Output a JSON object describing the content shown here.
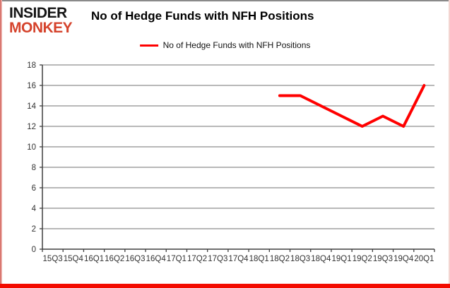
{
  "brand": {
    "line1": "INSIDER",
    "line2": "MONKEY"
  },
  "header": {
    "title": "No of Hedge Funds with NFH Positions"
  },
  "legend": {
    "label": "No of Hedge Funds with NFH Positions",
    "line_color": "#ff0000"
  },
  "chart_data": {
    "type": "line",
    "title": "No of Hedge Funds with NFH Positions",
    "categories": [
      "15Q3",
      "15Q4",
      "16Q1",
      "16Q2",
      "16Q3",
      "16Q4",
      "17Q1",
      "17Q2",
      "17Q3",
      "17Q4",
      "18Q1",
      "18Q2",
      "18Q3",
      "18Q4",
      "19Q1",
      "19Q2",
      "19Q3",
      "19Q4",
      "20Q1"
    ],
    "series": [
      {
        "name": "No of Hedge Funds with NFH Positions",
        "color": "#ff0000",
        "values": [
          null,
          null,
          null,
          null,
          null,
          null,
          null,
          null,
          null,
          null,
          null,
          15,
          15,
          14,
          13,
          12,
          13,
          12,
          16
        ]
      }
    ],
    "xlabel": "",
    "ylabel": "",
    "ylim": [
      0,
      18
    ],
    "ytick_step": 2,
    "grid": true,
    "legend_position": "top-center",
    "colors": {
      "gridline": "#8e8e8e",
      "axis": "#3f3f3f",
      "tick_label": "#333333",
      "background": "#ffffff"
    }
  }
}
